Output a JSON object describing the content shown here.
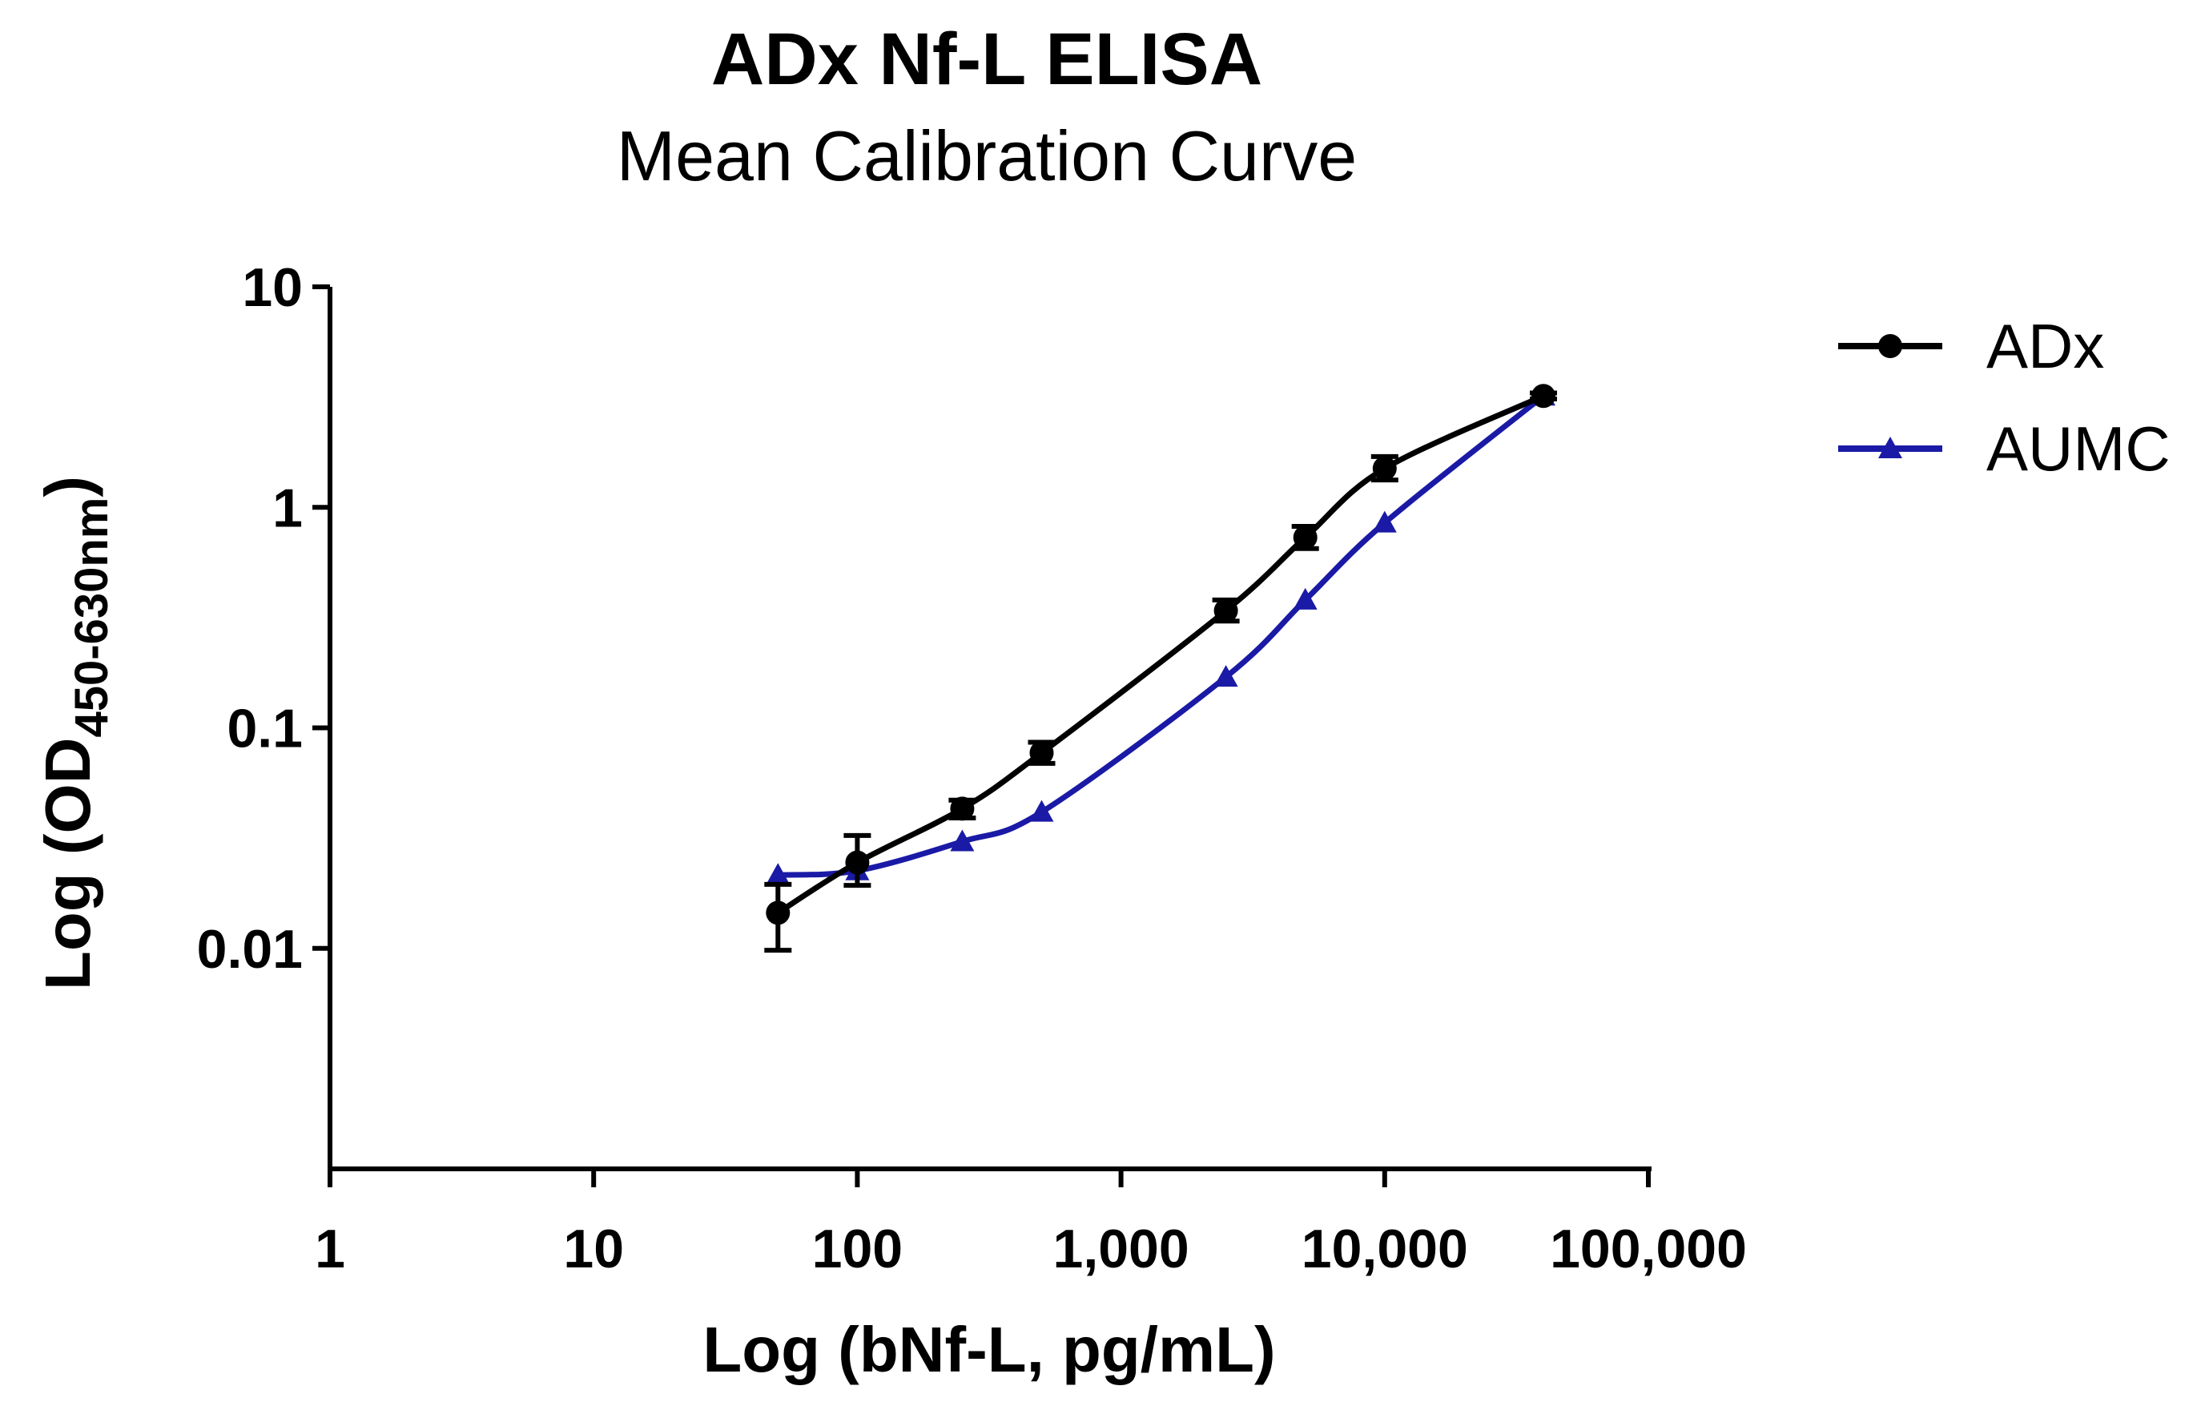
{
  "chart_data": {
    "type": "line",
    "title": "ADx Nf-L ELISA",
    "subtitle": "Mean Calibration Curve",
    "xlabel": "Log (bNf-L, pg/mL)",
    "ylabel": {
      "main": "Log (OD",
      "subscript": "450-630nm",
      "suffix": ")"
    },
    "x_scale": "log",
    "y_scale": "log",
    "xlim": [
      1,
      100000
    ],
    "ylim": [
      0.001,
      10
    ],
    "x_ticks": [
      {
        "value": 1,
        "label": "1"
      },
      {
        "value": 10,
        "label": "10"
      },
      {
        "value": 100,
        "label": "100"
      },
      {
        "value": 1000,
        "label": "1,000"
      },
      {
        "value": 10000,
        "label": "10,000"
      },
      {
        "value": 100000,
        "label": "100,000"
      }
    ],
    "y_ticks": [
      {
        "value": 0.01,
        "label": "0.01"
      },
      {
        "value": 0.1,
        "label": "0.1"
      },
      {
        "value": 1,
        "label": "1"
      },
      {
        "value": 10,
        "label": "10"
      }
    ],
    "grid": false,
    "legend_position": "top-right",
    "series": [
      {
        "name": "ADx",
        "color": "#000000",
        "marker": "circle",
        "points": [
          {
            "x": 50,
            "y": 0.0145,
            "err_low": 0.0098,
            "err_high": 0.0195
          },
          {
            "x": 100,
            "y": 0.0245,
            "err_low": 0.0193,
            "err_high": 0.0325
          },
          {
            "x": 250,
            "y": 0.043,
            "err_low": 0.039,
            "err_high": 0.047
          },
          {
            "x": 500,
            "y": 0.077,
            "err_low": 0.069,
            "err_high": 0.086
          },
          {
            "x": 2500,
            "y": 0.34,
            "err_low": 0.305,
            "err_high": 0.38
          },
          {
            "x": 5000,
            "y": 0.73,
            "err_low": 0.65,
            "err_high": 0.82
          },
          {
            "x": 10000,
            "y": 1.5,
            "err_low": 1.33,
            "err_high": 1.7
          },
          {
            "x": 40000,
            "y": 3.2,
            "err_low": 3.1,
            "err_high": 3.3
          }
        ]
      },
      {
        "name": "AUMC",
        "color": "#1a1aa6",
        "marker": "triangle",
        "points": [
          {
            "x": 50,
            "y": 0.0215
          },
          {
            "x": 100,
            "y": 0.0225
          },
          {
            "x": 250,
            "y": 0.0305
          },
          {
            "x": 500,
            "y": 0.0415
          },
          {
            "x": 2500,
            "y": 0.17
          },
          {
            "x": 5000,
            "y": 0.38
          },
          {
            "x": 10000,
            "y": 0.85
          },
          {
            "x": 40000,
            "y": 3.2
          }
        ]
      }
    ]
  }
}
